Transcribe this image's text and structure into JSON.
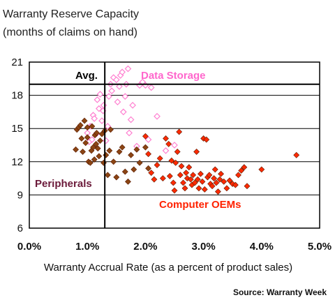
{
  "chart_data": {
    "type": "scatter",
    "title": "Warranty Reserve Capacity",
    "subtitle": "(months of claims on hand)",
    "xlabel": "Warranty Accrual Rate (as a percent of product sales)",
    "ylabel": "",
    "xlim": [
      0.0,
      5.0
    ],
    "ylim": [
      6,
      21
    ],
    "x_ticks": [
      "0.0%",
      "1.0%",
      "2.0%",
      "3.0%",
      "4.0%",
      "5.0%"
    ],
    "y_ticks": [
      "6",
      "9",
      "12",
      "15",
      "18",
      "21"
    ],
    "grid": true,
    "source": "Source: Warranty Week",
    "average": {
      "label": "Avg.",
      "x": 1.3,
      "y": 19.0
    },
    "series": [
      {
        "name": "Data Storage",
        "color": "#ff7fd0",
        "points": [
          [
            1.0,
            14.6
          ],
          [
            1.03,
            13.8
          ],
          [
            1.05,
            15.2
          ],
          [
            1.08,
            14.0
          ],
          [
            1.1,
            16.2
          ],
          [
            1.12,
            15.9
          ],
          [
            1.15,
            14.5
          ],
          [
            1.17,
            17.6
          ],
          [
            1.2,
            16.8
          ],
          [
            1.22,
            18.1
          ],
          [
            1.25,
            15.7
          ],
          [
            1.27,
            16.6
          ],
          [
            1.28,
            17.1
          ],
          [
            1.32,
            13.9
          ],
          [
            1.35,
            15.2
          ],
          [
            1.37,
            17.9
          ],
          [
            1.4,
            19.0
          ],
          [
            1.42,
            18.4
          ],
          [
            1.45,
            19.6
          ],
          [
            1.5,
            19.4
          ],
          [
            1.52,
            17.4
          ],
          [
            1.55,
            18.8
          ],
          [
            1.57,
            19.8
          ],
          [
            1.6,
            20.1
          ],
          [
            1.62,
            16.5
          ],
          [
            1.65,
            17.9
          ],
          [
            1.67,
            19.0
          ],
          [
            1.7,
            20.4
          ],
          [
            1.72,
            14.6
          ],
          [
            1.75,
            15.8
          ],
          [
            1.78,
            17.1
          ],
          [
            1.85,
            13.4
          ],
          [
            1.9,
            18.9
          ],
          [
            1.95,
            19.2
          ],
          [
            2.0,
            18.9
          ],
          [
            2.05,
            14.0
          ],
          [
            2.1,
            18.7
          ],
          [
            2.2,
            16.1
          ],
          [
            2.35,
            13.0
          ],
          [
            2.5,
            13.5
          ]
        ]
      },
      {
        "name": "Peripherals",
        "color": "#8b4513",
        "points": [
          [
            0.8,
            13.1
          ],
          [
            0.82,
            14.9
          ],
          [
            0.85,
            15.1
          ],
          [
            0.88,
            15.3
          ],
          [
            0.9,
            14.1
          ],
          [
            0.92,
            12.9
          ],
          [
            0.95,
            15.7
          ],
          [
            0.97,
            13.7
          ],
          [
            1.0,
            14.2
          ],
          [
            1.0,
            15.1
          ],
          [
            1.02,
            12.0
          ],
          [
            1.05,
            11.9
          ],
          [
            1.07,
            13.0
          ],
          [
            1.08,
            15.2
          ],
          [
            1.1,
            13.3
          ],
          [
            1.12,
            12.2
          ],
          [
            1.13,
            14.4
          ],
          [
            1.15,
            13.6
          ],
          [
            1.16,
            14.6
          ],
          [
            1.18,
            13.2
          ],
          [
            1.2,
            12.5
          ],
          [
            1.22,
            13.9
          ],
          [
            1.25,
            14.5
          ],
          [
            1.28,
            11.9
          ],
          [
            1.3,
            14.8
          ],
          [
            1.32,
            12.6
          ],
          [
            1.35,
            10.8
          ],
          [
            1.38,
            13.0
          ],
          [
            1.4,
            14.9
          ],
          [
            1.45,
            12.0
          ],
          [
            1.5,
            10.6
          ],
          [
            1.55,
            12.9
          ],
          [
            1.6,
            13.3
          ],
          [
            1.65,
            11.1
          ],
          [
            1.7,
            10.2
          ],
          [
            1.75,
            12.6
          ],
          [
            1.8,
            11.3
          ],
          [
            1.85,
            13.1
          ],
          [
            1.9,
            11.9
          ],
          [
            2.0,
            13.3
          ],
          [
            2.05,
            11.4
          ]
        ]
      },
      {
        "name": "Computer OEMs",
        "color": "#ff2a00",
        "points": [
          [
            2.0,
            14.3
          ],
          [
            2.05,
            12.7
          ],
          [
            2.1,
            11.0
          ],
          [
            2.15,
            10.4
          ],
          [
            2.2,
            11.7
          ],
          [
            2.25,
            12.3
          ],
          [
            2.3,
            10.5
          ],
          [
            2.35,
            14.1
          ],
          [
            2.4,
            13.6
          ],
          [
            2.42,
            10.7
          ],
          [
            2.45,
            12.1
          ],
          [
            2.48,
            10.1
          ],
          [
            2.5,
            9.4
          ],
          [
            2.52,
            11.9
          ],
          [
            2.55,
            12.9
          ],
          [
            2.58,
            14.7
          ],
          [
            2.6,
            10.8
          ],
          [
            2.62,
            11.6
          ],
          [
            2.65,
            10.1
          ],
          [
            2.68,
            9.6
          ],
          [
            2.7,
            11.0
          ],
          [
            2.72,
            10.5
          ],
          [
            2.75,
            11.5
          ],
          [
            2.78,
            10.4
          ],
          [
            2.8,
            9.9
          ],
          [
            2.82,
            10.8
          ],
          [
            2.85,
            10.1
          ],
          [
            2.88,
            12.9
          ],
          [
            2.9,
            10.4
          ],
          [
            2.92,
            9.6
          ],
          [
            2.95,
            10.9
          ],
          [
            2.98,
            10.2
          ],
          [
            3.0,
            14.1
          ],
          [
            3.02,
            9.5
          ],
          [
            3.05,
            14.0
          ],
          [
            3.07,
            10.6
          ],
          [
            3.1,
            10.8
          ],
          [
            3.12,
            10.0
          ],
          [
            3.15,
            9.8
          ],
          [
            3.18,
            10.5
          ],
          [
            3.2,
            11.3
          ],
          [
            3.22,
            10.1
          ],
          [
            3.25,
            9.3
          ],
          [
            3.28,
            10.4
          ],
          [
            3.3,
            10.9
          ],
          [
            3.35,
            10.2
          ],
          [
            3.4,
            9.6
          ],
          [
            3.45,
            10.3
          ],
          [
            3.5,
            10.0
          ],
          [
            3.55,
            9.9
          ],
          [
            3.6,
            10.8
          ],
          [
            3.65,
            11.2
          ],
          [
            3.7,
            11.5
          ],
          [
            3.75,
            9.8
          ],
          [
            4.0,
            11.3
          ],
          [
            4.6,
            12.6
          ]
        ]
      }
    ],
    "annotations": [
      {
        "text": "Data Storage",
        "color": "#ff66cc"
      },
      {
        "text": "Peripherals",
        "color": "#6b1a3a"
      },
      {
        "text": "Computer OEMs",
        "color": "#ff2200"
      }
    ]
  }
}
